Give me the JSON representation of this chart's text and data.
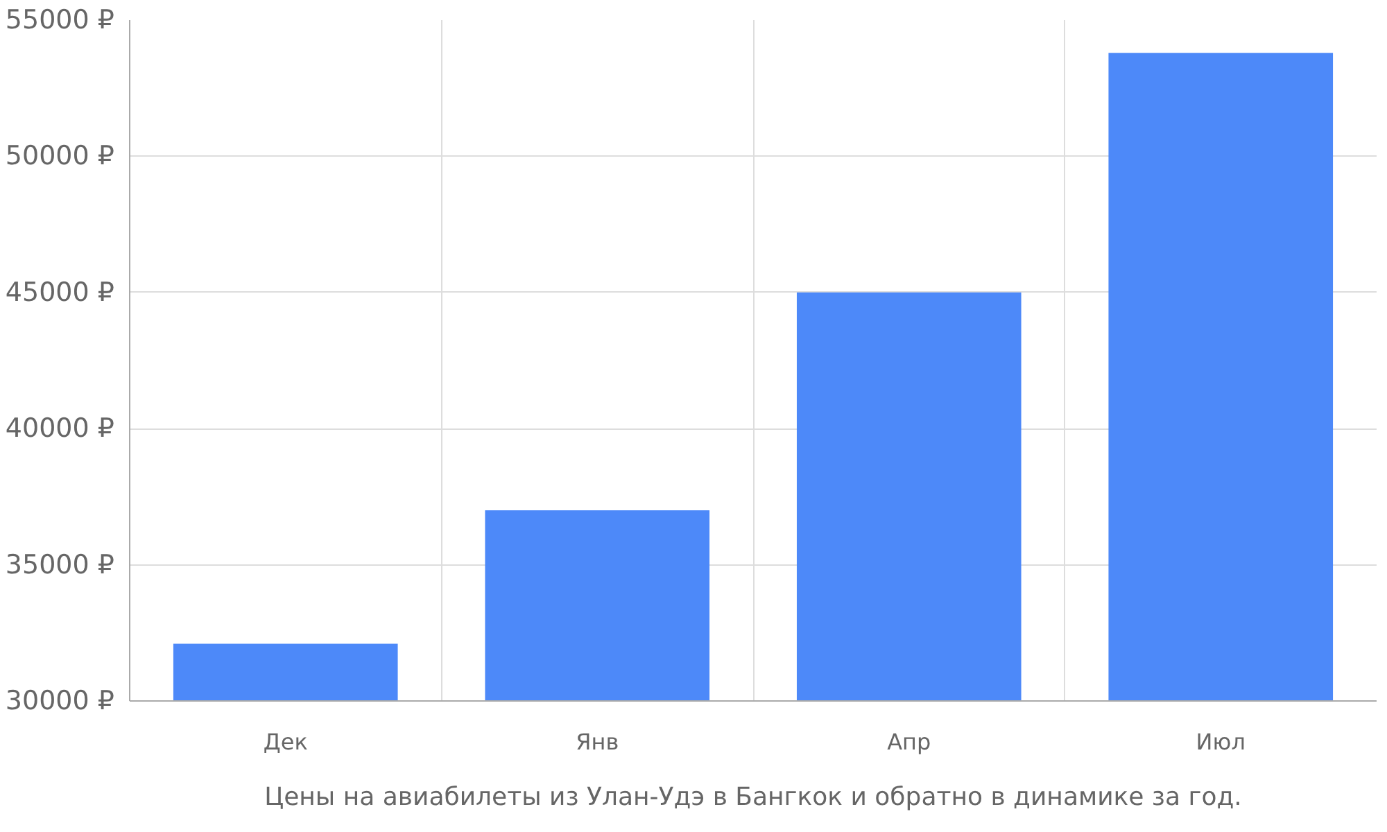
{
  "chart_data": {
    "type": "bar",
    "title": "Цены на авиабилеты из Улан-Удэ в Бангкок и обратно в динамике за год.",
    "categories": [
      "Дек",
      "Янв",
      "Апр",
      "Июл"
    ],
    "values": [
      32100,
      37000,
      45000,
      53800
    ],
    "color": "#4d89f9",
    "ylim": [
      30000,
      55000
    ],
    "yticks": [
      {
        "value": 30000,
        "label": "30000 ₽"
      },
      {
        "value": 35000,
        "label": "35000 ₽"
      },
      {
        "value": 40000,
        "label": "40000 ₽"
      },
      {
        "value": 45000,
        "label": "45000 ₽"
      },
      {
        "value": 50000,
        "label": "50000 ₽"
      },
      {
        "value": 55000,
        "label": "55000 ₽"
      }
    ],
    "grid": true
  }
}
